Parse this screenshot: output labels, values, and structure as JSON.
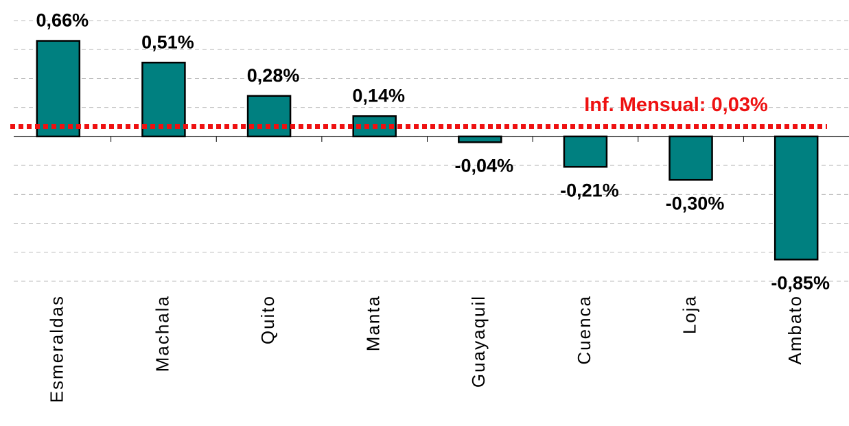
{
  "chart_data": {
    "type": "bar",
    "categories": [
      "Esmeraldas",
      "Machala",
      "Quito",
      "Manta",
      "Guayaquil",
      "Cuenca",
      "Loja",
      "Ambato"
    ],
    "values": [
      0.66,
      0.51,
      0.28,
      0.14,
      -0.04,
      -0.21,
      -0.3,
      -0.85
    ],
    "value_labels": [
      "0,66%",
      "0,51%",
      "0,28%",
      "0,14%",
      "-0,04%",
      "-0,21%",
      "-0,30%",
      "-0,85%"
    ],
    "color": "#008080",
    "ylim": [
      -1.0,
      0.8
    ],
    "yticks": [
      -1.0,
      -0.8,
      -0.6,
      -0.4,
      -0.2,
      0,
      0.2,
      0.4,
      0.6,
      0.8
    ],
    "grid": true,
    "reference_line": {
      "value": 0.03,
      "label": "Inf. Mensual: 0,03%",
      "color": "#ee1111"
    }
  }
}
